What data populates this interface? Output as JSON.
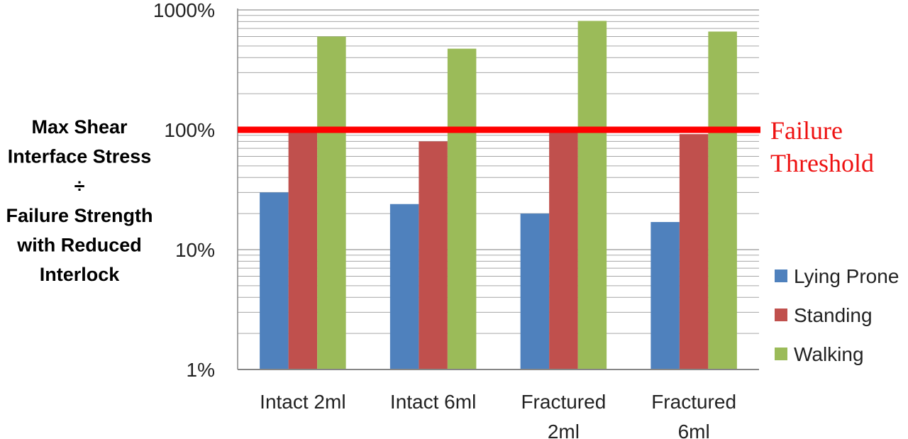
{
  "colors": {
    "lying_prone": "#4f81bd",
    "standing": "#c0504d",
    "walking": "#9bbb59",
    "threshold": "#ff0000",
    "grid": "#a6a6a6"
  },
  "chart_data": {
    "type": "bar",
    "title": "",
    "ylabel_lines": [
      "Max Shear",
      "Interface Stress",
      "÷",
      "Failure Strength",
      "with Reduced",
      "Interlock"
    ],
    "yscale": "log",
    "ylim": [
      1,
      1000
    ],
    "yticks": [
      {
        "value": 1,
        "label": "1%"
      },
      {
        "value": 10,
        "label": "10%"
      },
      {
        "value": 100,
        "label": "100%"
      },
      {
        "value": 1000,
        "label": "1000%"
      }
    ],
    "grid": true,
    "legend_position": "right",
    "categories": [
      [
        "Intact 2ml"
      ],
      [
        "Intact 6ml"
      ],
      [
        "Fractured",
        "2ml"
      ],
      [
        "Fractured",
        "6ml"
      ]
    ],
    "series": [
      {
        "name": "Lying Prone",
        "color_key": "lying_prone",
        "values": [
          30,
          24,
          20,
          17
        ]
      },
      {
        "name": "Standing",
        "color_key": "standing",
        "values": [
          100,
          80,
          105,
          92
        ]
      },
      {
        "name": "Walking",
        "color_key": "walking",
        "values": [
          600,
          475,
          810,
          660
        ]
      }
    ],
    "threshold": {
      "value": 100,
      "label_lines": [
        "Failure",
        "Threshold"
      ]
    }
  }
}
